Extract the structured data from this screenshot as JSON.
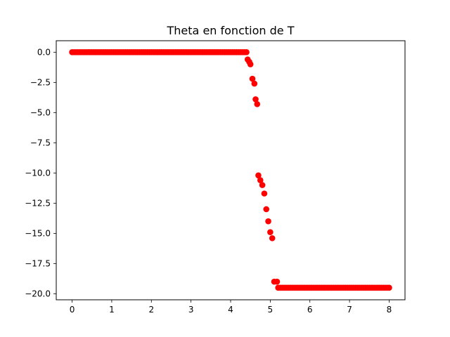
{
  "chart_data": {
    "type": "scatter",
    "title": "Theta en fonction de T",
    "xlabel": "",
    "ylabel": "",
    "xlim": [
      -0.4,
      8.4
    ],
    "ylim": [
      -20.5,
      0.95
    ],
    "xticks": [
      0,
      1,
      2,
      3,
      4,
      5,
      6,
      7,
      8
    ],
    "xtick_labels": [
      "0",
      "1",
      "2",
      "3",
      "4",
      "5",
      "6",
      "7",
      "8"
    ],
    "yticks": [
      0.0,
      -2.5,
      -5.0,
      -7.5,
      -10.0,
      -12.5,
      -15.0,
      -17.5,
      -20.0
    ],
    "ytick_labels": [
      "0.0",
      "−2.5",
      "−5.0",
      "−7.5",
      "−10.0",
      "−12.5",
      "−15.0",
      "−17.5",
      "−20.0"
    ],
    "grid": false,
    "marker_color": "#ff0000",
    "x": [
      0.0,
      0.05,
      0.1,
      0.15,
      0.2,
      0.25,
      0.3,
      0.35,
      0.4,
      0.45,
      0.5,
      0.55,
      0.6,
      0.65,
      0.7,
      0.75,
      0.8,
      0.85,
      0.9,
      0.95,
      1.0,
      1.05,
      1.1,
      1.15,
      1.2,
      1.25,
      1.3,
      1.35,
      1.4,
      1.45,
      1.5,
      1.55,
      1.6,
      1.65,
      1.7,
      1.75,
      1.8,
      1.85,
      1.9,
      1.95,
      2.0,
      2.05,
      2.1,
      2.15,
      2.2,
      2.25,
      2.3,
      2.35,
      2.4,
      2.45,
      2.5,
      2.55,
      2.6,
      2.65,
      2.7,
      2.75,
      2.8,
      2.85,
      2.9,
      2.95,
      3.0,
      3.05,
      3.1,
      3.15,
      3.2,
      3.25,
      3.3,
      3.35,
      3.4,
      3.45,
      3.5,
      3.55,
      3.6,
      3.65,
      3.7,
      3.75,
      3.8,
      3.85,
      3.9,
      3.95,
      4.0,
      4.05,
      4.1,
      4.15,
      4.2,
      4.25,
      4.3,
      4.35,
      4.4,
      4.43,
      4.47,
      4.5,
      4.55,
      4.6,
      4.63,
      4.67,
      4.7,
      4.75,
      4.8,
      4.85,
      4.9,
      4.95,
      5.0,
      5.05,
      5.1,
      5.17,
      5.2,
      5.25,
      5.3,
      5.35,
      5.4,
      5.45,
      5.5,
      5.55,
      5.6,
      5.65,
      5.7,
      5.75,
      5.8,
      5.85,
      5.9,
      5.95,
      6.0,
      6.05,
      6.1,
      6.15,
      6.2,
      6.25,
      6.3,
      6.35,
      6.4,
      6.45,
      6.5,
      6.55,
      6.6,
      6.65,
      6.7,
      6.75,
      6.8,
      6.85,
      6.9,
      6.95,
      7.0,
      7.05,
      7.1,
      7.15,
      7.2,
      7.25,
      7.3,
      7.35,
      7.4,
      7.45,
      7.5,
      7.55,
      7.6,
      7.65,
      7.7,
      7.75,
      7.8,
      7.85,
      7.9,
      7.95,
      8.0
    ],
    "y": [
      0,
      0,
      0,
      0,
      0,
      0,
      0,
      0,
      0,
      0,
      0,
      0,
      0,
      0,
      0,
      0,
      0,
      0,
      0,
      0,
      0,
      0,
      0,
      0,
      0,
      0,
      0,
      0,
      0,
      0,
      0,
      0,
      0,
      0,
      0,
      0,
      0,
      0,
      0,
      0,
      0,
      0,
      0,
      0,
      0,
      0,
      0,
      0,
      0,
      0,
      0,
      0,
      0,
      0,
      0,
      0,
      0,
      0,
      0,
      0,
      0,
      0,
      0,
      0,
      0,
      0,
      0,
      0,
      0,
      0,
      0,
      0,
      0,
      0,
      0,
      0,
      0,
      0,
      0,
      0,
      0,
      0,
      0,
      0,
      0,
      0,
      0,
      0,
      0,
      -0.6,
      -0.8,
      -1.0,
      -2.2,
      -2.6,
      -3.9,
      -4.3,
      -10.2,
      -10.6,
      -11.0,
      -11.7,
      -13.0,
      -14.0,
      -14.9,
      -15.4,
      -19.0,
      -19.0,
      -19.5,
      -19.5,
      -19.5,
      -19.5,
      -19.5,
      -19.5,
      -19.5,
      -19.5,
      -19.5,
      -19.5,
      -19.5,
      -19.5,
      -19.5,
      -19.5,
      -19.5,
      -19.5,
      -19.5,
      -19.5,
      -19.5,
      -19.5,
      -19.5,
      -19.5,
      -19.5,
      -19.5,
      -19.5,
      -19.5,
      -19.5,
      -19.5,
      -19.5,
      -19.5,
      -19.5,
      -19.5,
      -19.5,
      -19.5,
      -19.5,
      -19.5,
      -19.5,
      -19.5,
      -19.5,
      -19.5,
      -19.5,
      -19.5,
      -19.5,
      -19.5,
      -19.5,
      -19.5,
      -19.5,
      -19.5,
      -19.5,
      -19.5,
      -19.5,
      -19.5,
      -19.5,
      -19.5,
      -19.5,
      -19.5,
      -19.5
    ]
  }
}
